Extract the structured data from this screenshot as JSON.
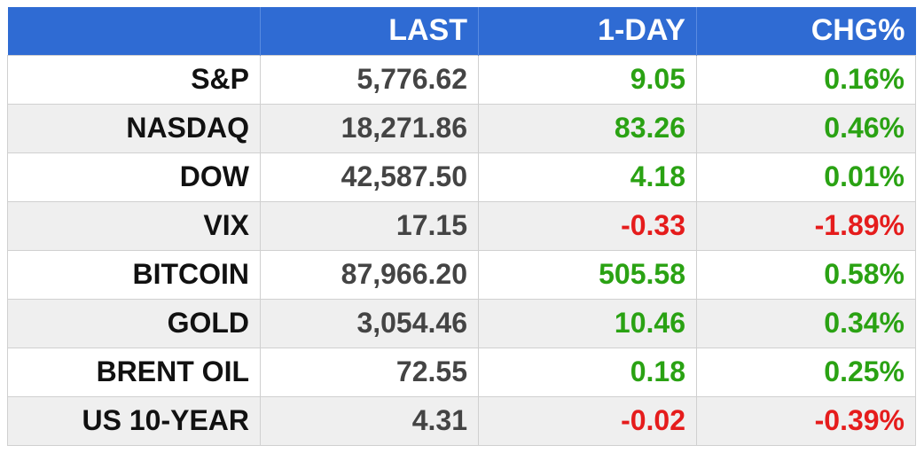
{
  "header": {
    "columns": [
      "",
      "LAST",
      "1-DAY",
      "CHG%"
    ]
  },
  "colors": {
    "header_bg": "#2f6bd3",
    "positive": "#2aa213",
    "negative": "#e51c1c"
  },
  "rows": [
    {
      "name": "S&P",
      "last": "5,776.62",
      "day": "9.05",
      "chg": "0.16%",
      "dir": "pos"
    },
    {
      "name": "NASDAQ",
      "last": "18,271.86",
      "day": "83.26",
      "chg": "0.46%",
      "dir": "pos"
    },
    {
      "name": "DOW",
      "last": "42,587.50",
      "day": "4.18",
      "chg": "0.01%",
      "dir": "pos"
    },
    {
      "name": "VIX",
      "last": "17.15",
      "day": "-0.33",
      "chg": "-1.89%",
      "dir": "neg"
    },
    {
      "name": "BITCOIN",
      "last": "87,966.20",
      "day": "505.58",
      "chg": "0.58%",
      "dir": "pos"
    },
    {
      "name": "GOLD",
      "last": "3,054.46",
      "day": "10.46",
      "chg": "0.34%",
      "dir": "pos"
    },
    {
      "name": "BRENT OIL",
      "last": "72.55",
      "day": "0.18",
      "chg": "0.25%",
      "dir": "pos"
    },
    {
      "name": "US 10-YEAR",
      "last": "4.31",
      "day": "-0.02",
      "chg": "-0.39%",
      "dir": "neg"
    }
  ]
}
